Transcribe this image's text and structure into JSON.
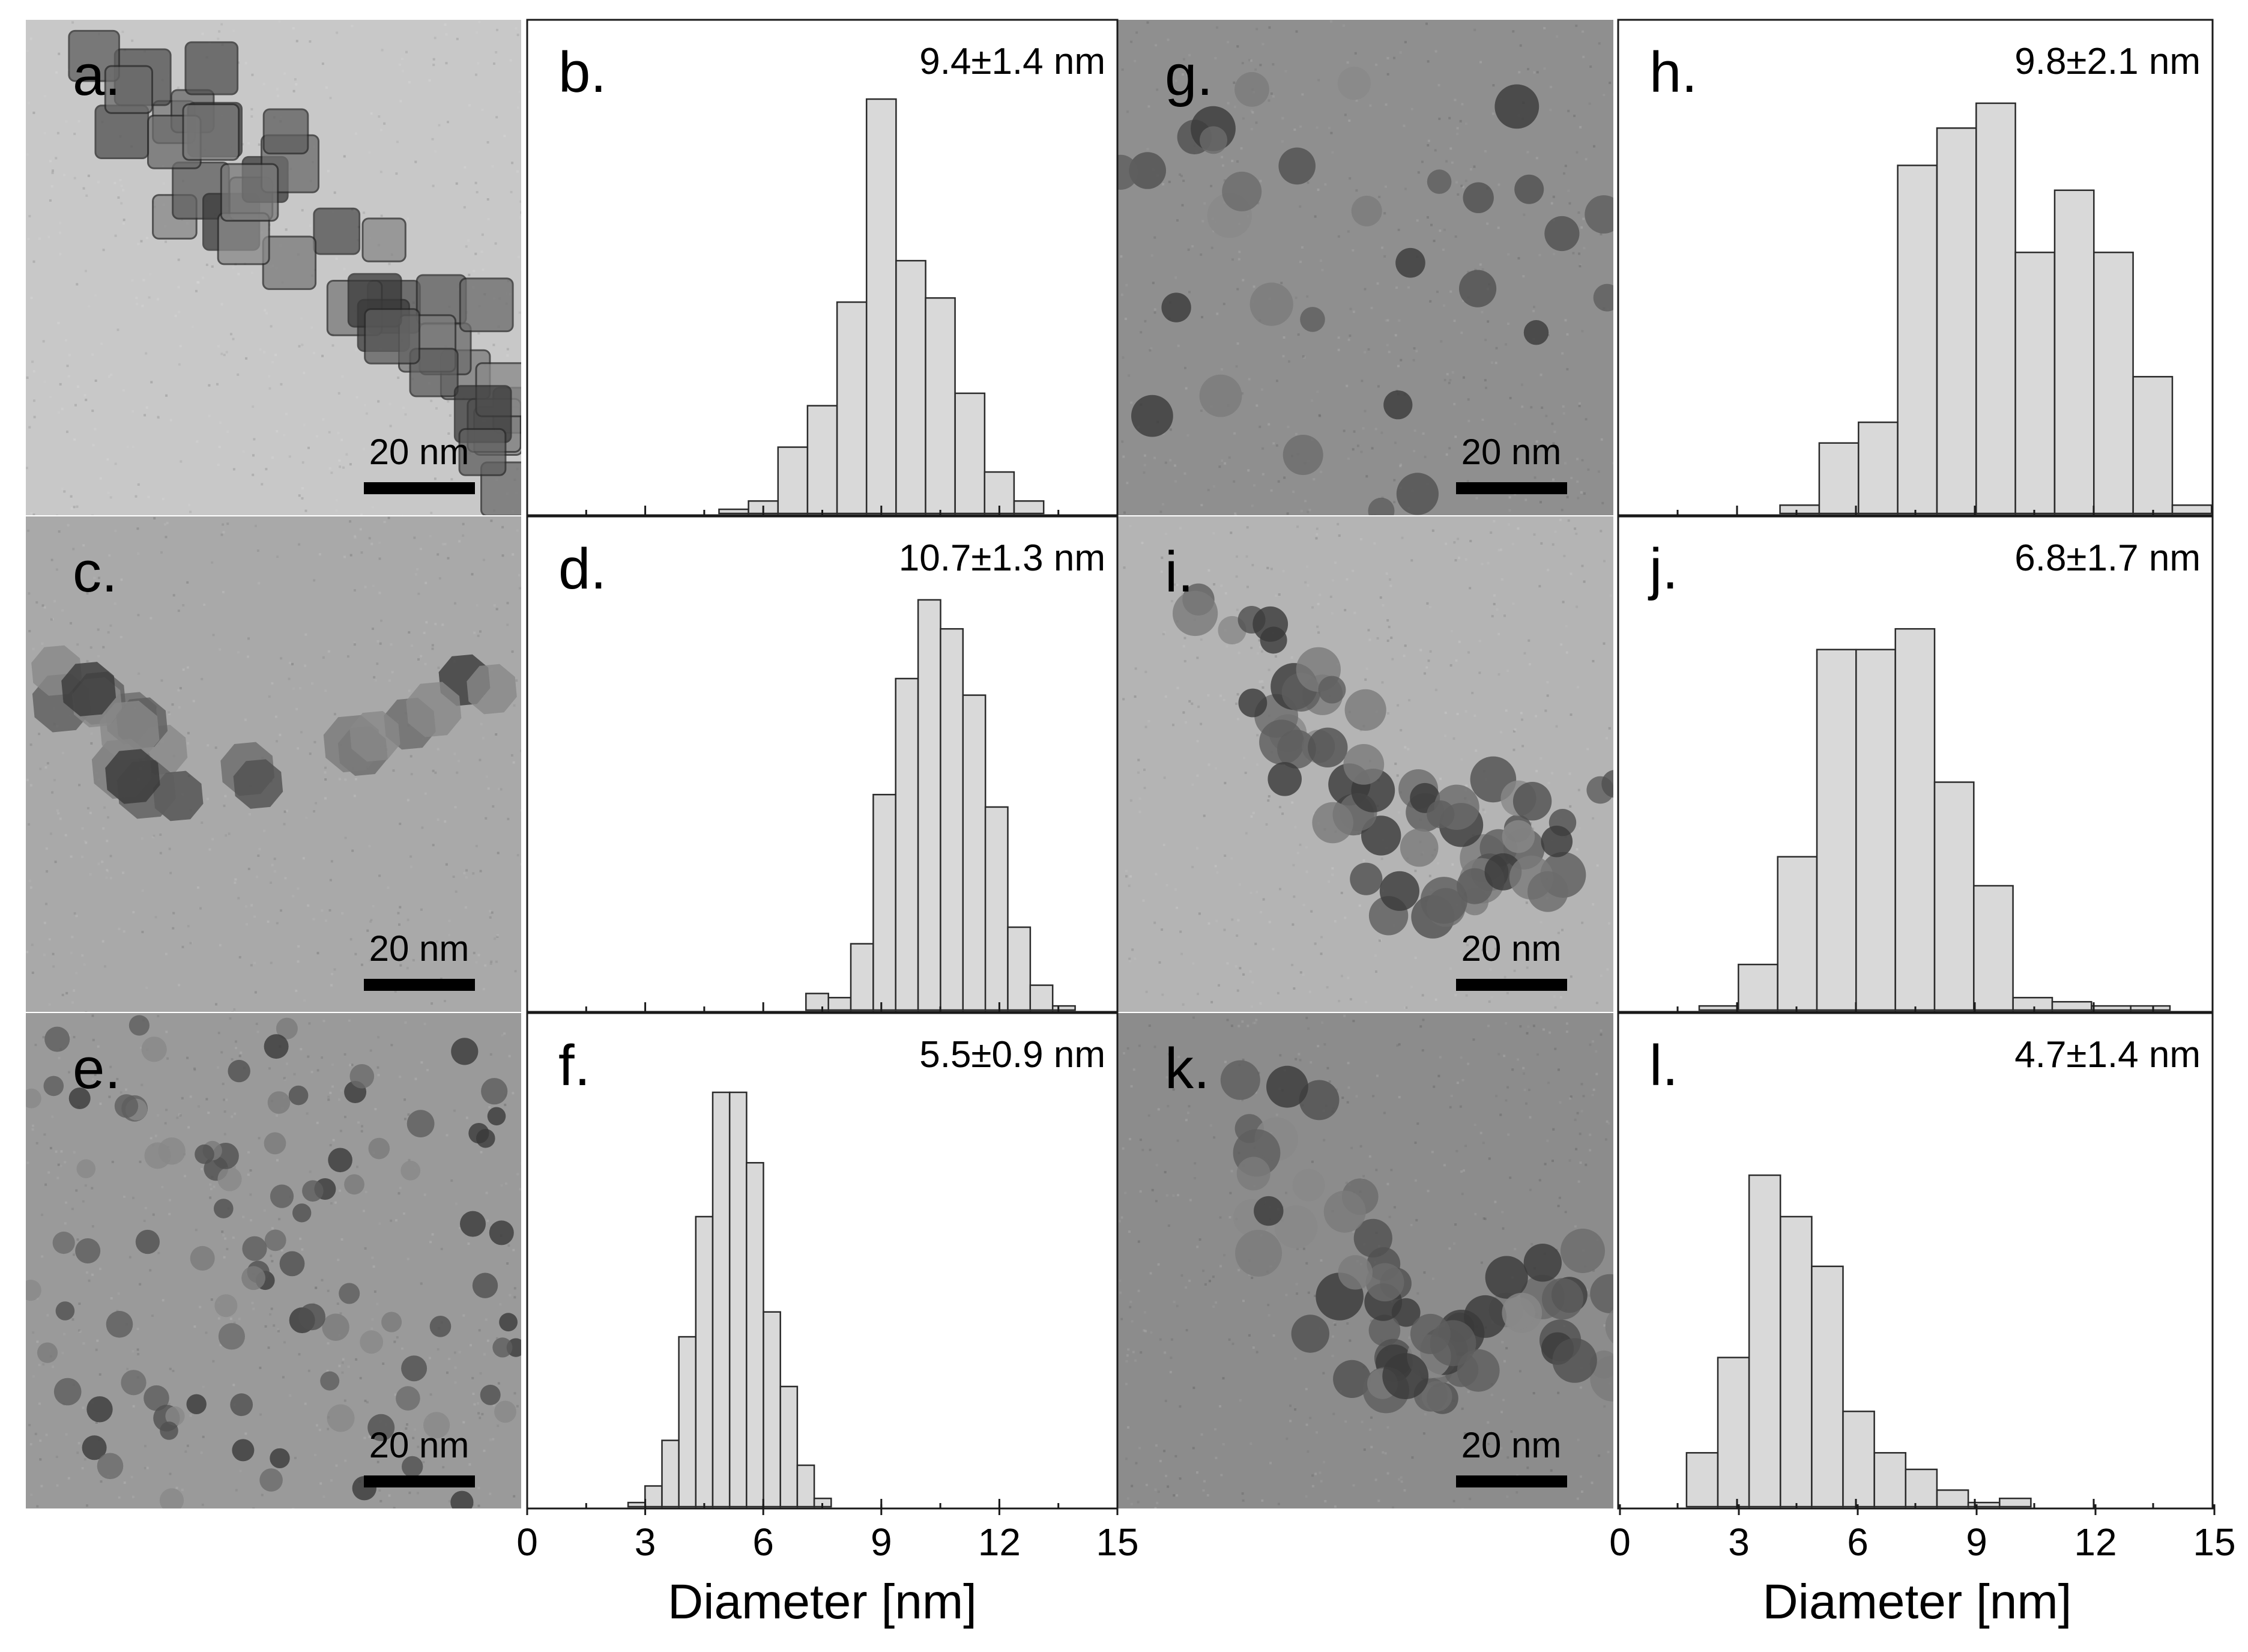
{
  "figure": {
    "x_axis_title": "Diameter [nm]",
    "x_tick_labels": [
      "0",
      "3",
      "6",
      "9",
      "12",
      "15"
    ],
    "scale_bar_label": "20 nm"
  },
  "tem_panels": {
    "a": {
      "letter": "a.",
      "scale_label": "20 nm",
      "particle_shape": "cube",
      "background": "#c8c8c8"
    },
    "c": {
      "letter": "c.",
      "scale_label": "20 nm",
      "particle_shape": "polyhedron",
      "background": "#a9a9a9"
    },
    "e": {
      "letter": "e.",
      "scale_label": "20 nm",
      "particle_shape": "sphere",
      "background": "#9a9a9a"
    },
    "g": {
      "letter": "g.",
      "scale_label": "20 nm",
      "particle_shape": "sphere",
      "background": "#8f8f8f"
    },
    "i": {
      "letter": "i.",
      "scale_label": "20 nm",
      "particle_shape": "aggregate",
      "background": "#b4b4b4"
    },
    "k": {
      "letter": "k.",
      "scale_label": "20 nm",
      "particle_shape": "aggregate",
      "background": "#8c8c8c"
    }
  },
  "chart_data": [
    {
      "id": "b",
      "type": "bar",
      "letter": "b.",
      "label": "9.4±1.4 nm",
      "xlabel": "",
      "xlim": [
        0,
        15
      ],
      "bin_width": 0.75,
      "bar_color": "#d9d9d9",
      "bins": [
        [
          4.875,
          0.01
        ],
        [
          5.625,
          0.03
        ],
        [
          6.375,
          0.16
        ],
        [
          7.125,
          0.26
        ],
        [
          7.875,
          0.51
        ],
        [
          8.625,
          1.0
        ],
        [
          9.375,
          0.61
        ],
        [
          10.125,
          0.52
        ],
        [
          10.875,
          0.29
        ],
        [
          11.625,
          0.1
        ],
        [
          12.375,
          0.03
        ]
      ]
    },
    {
      "id": "d",
      "type": "bar",
      "letter": "d.",
      "label": "10.7±1.3 nm",
      "xlabel": "",
      "xlim": [
        0,
        15
      ],
      "bin_width": 0.57,
      "bar_color": "#d9d9d9",
      "bins": [
        [
          7.085,
          0.04
        ],
        [
          7.655,
          0.03
        ],
        [
          8.225,
          0.16
        ],
        [
          8.795,
          0.52
        ],
        [
          9.365,
          0.8
        ],
        [
          9.935,
          0.99
        ],
        [
          10.505,
          0.92
        ],
        [
          11.075,
          0.76
        ],
        [
          11.645,
          0.49
        ],
        [
          12.215,
          0.2
        ],
        [
          12.785,
          0.06
        ],
        [
          13.355,
          0.01
        ]
      ]
    },
    {
      "id": "f",
      "type": "bar",
      "letter": "f.",
      "label": "5.5±0.9 nm",
      "xlabel": "Diameter [nm]",
      "xlim": [
        0,
        15
      ],
      "bin_width": 0.43,
      "bar_color": "#d9d9d9",
      "bins": [
        [
          2.565,
          0.01
        ],
        [
          2.995,
          0.05
        ],
        [
          3.425,
          0.16
        ],
        [
          3.855,
          0.41
        ],
        [
          4.285,
          0.7
        ],
        [
          4.715,
          1.0
        ],
        [
          5.145,
          1.0
        ],
        [
          5.575,
          0.83
        ],
        [
          6.005,
          0.47
        ],
        [
          6.435,
          0.29
        ],
        [
          6.865,
          0.1
        ],
        [
          7.295,
          0.02
        ]
      ]
    },
    {
      "id": "h",
      "type": "bar",
      "letter": "h.",
      "label": "9.8±2.1 nm",
      "xlabel": "",
      "xlim": [
        0,
        15
      ],
      "bin_width": 0.99,
      "bar_color": "#d9d9d9",
      "bins": [
        [
          4.085,
          0.02
        ],
        [
          5.075,
          0.17
        ],
        [
          6.065,
          0.22
        ],
        [
          7.055,
          0.84
        ],
        [
          8.045,
          0.93
        ],
        [
          9.035,
          0.99
        ],
        [
          10.025,
          0.63
        ],
        [
          11.015,
          0.78
        ],
        [
          12.005,
          0.63
        ],
        [
          12.995,
          0.33
        ],
        [
          13.985,
          0.02
        ]
      ]
    },
    {
      "id": "j",
      "type": "bar",
      "letter": "j.",
      "label": "6.8±1.7 nm",
      "xlabel": "",
      "xlim": [
        0,
        15
      ],
      "bin_width": 0.99,
      "bar_color": "#d9d9d9",
      "bins": [
        [
          2.045,
          0.01
        ],
        [
          3.035,
          0.11
        ],
        [
          4.025,
          0.37
        ],
        [
          5.015,
          0.87
        ],
        [
          6.005,
          0.87
        ],
        [
          6.995,
          0.92
        ],
        [
          7.985,
          0.55
        ],
        [
          8.975,
          0.3
        ],
        [
          9.965,
          0.03
        ],
        [
          10.955,
          0.02
        ],
        [
          11.945,
          0.01
        ],
        [
          12.935,
          0.01
        ]
      ]
    },
    {
      "id": "l",
      "type": "bar",
      "letter": "l.",
      "label": "4.7±1.4 nm",
      "xlabel": "Diameter [nm]",
      "xlim": [
        0,
        15
      ],
      "bin_width": 0.79,
      "bar_color": "#d9d9d9",
      "bins": [
        [
          1.725,
          0.13
        ],
        [
          2.515,
          0.36
        ],
        [
          3.305,
          0.8
        ],
        [
          4.095,
          0.7
        ],
        [
          4.885,
          0.58
        ],
        [
          5.675,
          0.23
        ],
        [
          6.465,
          0.13
        ],
        [
          7.255,
          0.09
        ],
        [
          8.045,
          0.04
        ],
        [
          8.835,
          0.01
        ],
        [
          9.625,
          0.02
        ]
      ]
    }
  ]
}
